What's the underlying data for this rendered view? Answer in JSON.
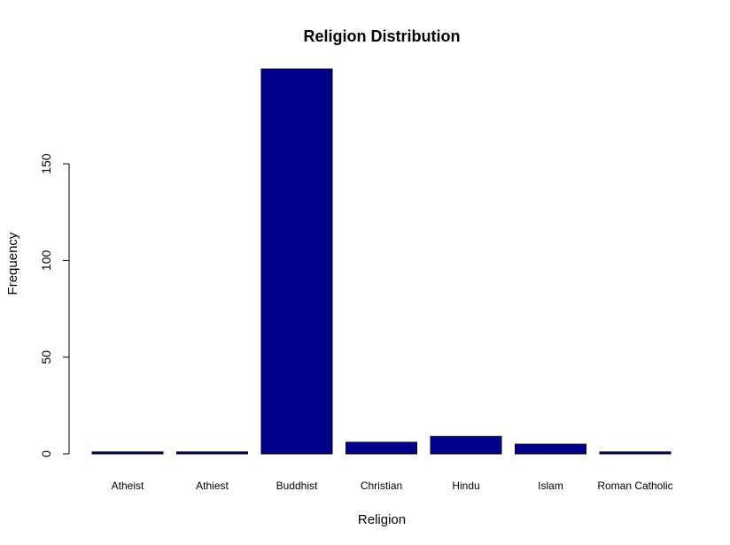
{
  "chart_data": {
    "type": "bar",
    "title": "Religion Distribution",
    "xlabel": "Religion",
    "ylabel": "Frequency",
    "categories": [
      "Atheist",
      "Athiest",
      "Buddhist",
      "Christian",
      "Hindu",
      "Islam",
      "Roman Catholic"
    ],
    "values": [
      1,
      1,
      199,
      6,
      9,
      5,
      1
    ],
    "yticks": [
      0,
      50,
      100,
      150
    ],
    "ylim": [
      0,
      199
    ],
    "grid": false,
    "bar_color": "#00008B",
    "bar_border_color": "#000000"
  }
}
